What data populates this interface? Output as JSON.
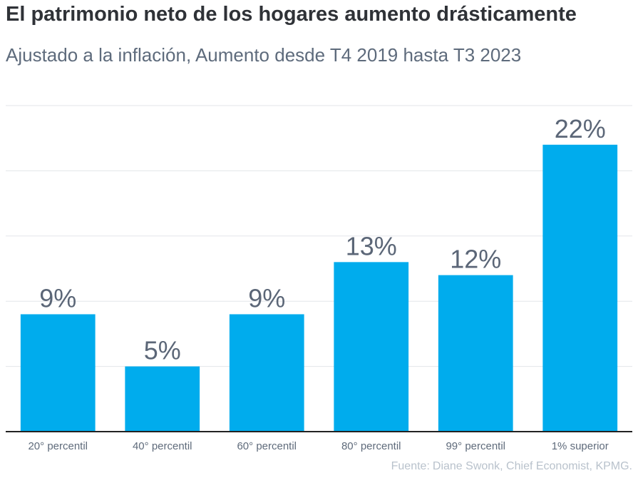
{
  "title": "El patrimonio neto de los hogares aumento drásticamente",
  "subtitle": "Ajustado a la inflación, Aumento desde T4 2019 hasta T3 2023",
  "source": {
    "label": "Fuente:",
    "text": "Diane Swonk, Chief Economist, KPMG."
  },
  "colors": {
    "bar": "#00aced",
    "value_label": "#5b6677",
    "tick_label": "#5f6b7b",
    "grid": "#e3e6ea",
    "axis": "#222222"
  },
  "chart_data": {
    "type": "bar",
    "title": "El patrimonio neto de los hogares aumento drásticamente",
    "subtitle": "Ajustado a la inflación, Aumento desde T4 2019 hasta T3 2023",
    "categories": [
      "20° percentil",
      "40° percentil",
      "60° percentil",
      "80° percentil",
      "99° percentil",
      "1% superior"
    ],
    "values": [
      9,
      5,
      9,
      13,
      12,
      22
    ],
    "value_labels": [
      "9%",
      "5%",
      "9%",
      "13%",
      "12%",
      "22%"
    ],
    "unit": "%",
    "ylim": [
      0,
      25
    ],
    "y_gridlines": [
      5,
      10,
      15,
      20,
      25
    ],
    "grid": true,
    "legend": "none"
  }
}
